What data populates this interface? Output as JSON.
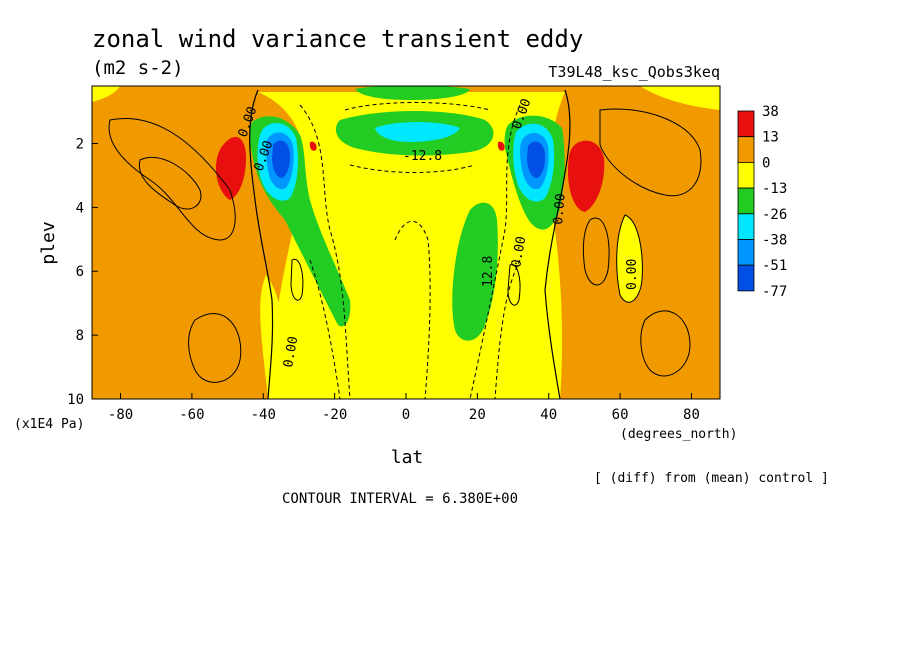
{
  "chart_data": {
    "type": "heatmap",
    "title": "zonal wind variance transient eddy",
    "subtitle": "(m2 s-2)",
    "run_label": "T39L48_ksc_Qobs3keq",
    "xlabel": "lat",
    "x_units": "(degrees_north)",
    "ylabel": "plev",
    "y_units": "(x1E4 Pa)",
    "x_ticks": [
      "-80",
      "-60",
      "-40",
      "-20",
      "0",
      "20",
      "40",
      "60",
      "80"
    ],
    "y_ticks": [
      "2",
      "4",
      "6",
      "8",
      "10"
    ],
    "xlim": [
      -88,
      88
    ],
    "ylim": [
      0.2,
      10
    ],
    "y_inverted": true,
    "grid": false,
    "legend_position": "right",
    "colorbar": {
      "labels": [
        "38",
        "13",
        "0",
        "-13",
        "-26",
        "-38",
        "-51",
        "-77"
      ],
      "colors": [
        "#e8100f",
        "#f09a00",
        "#ffff00",
        "#22cc22",
        "#00e8ff",
        "#0096ff",
        "#0050e6"
      ]
    },
    "contour_labels": [
      "0.00",
      "-12.8",
      "12.8"
    ],
    "contour_interval_text": "CONTOUR INTERVAL = 6.380E+00",
    "note": "[ (diff) from (mean) control ]"
  }
}
